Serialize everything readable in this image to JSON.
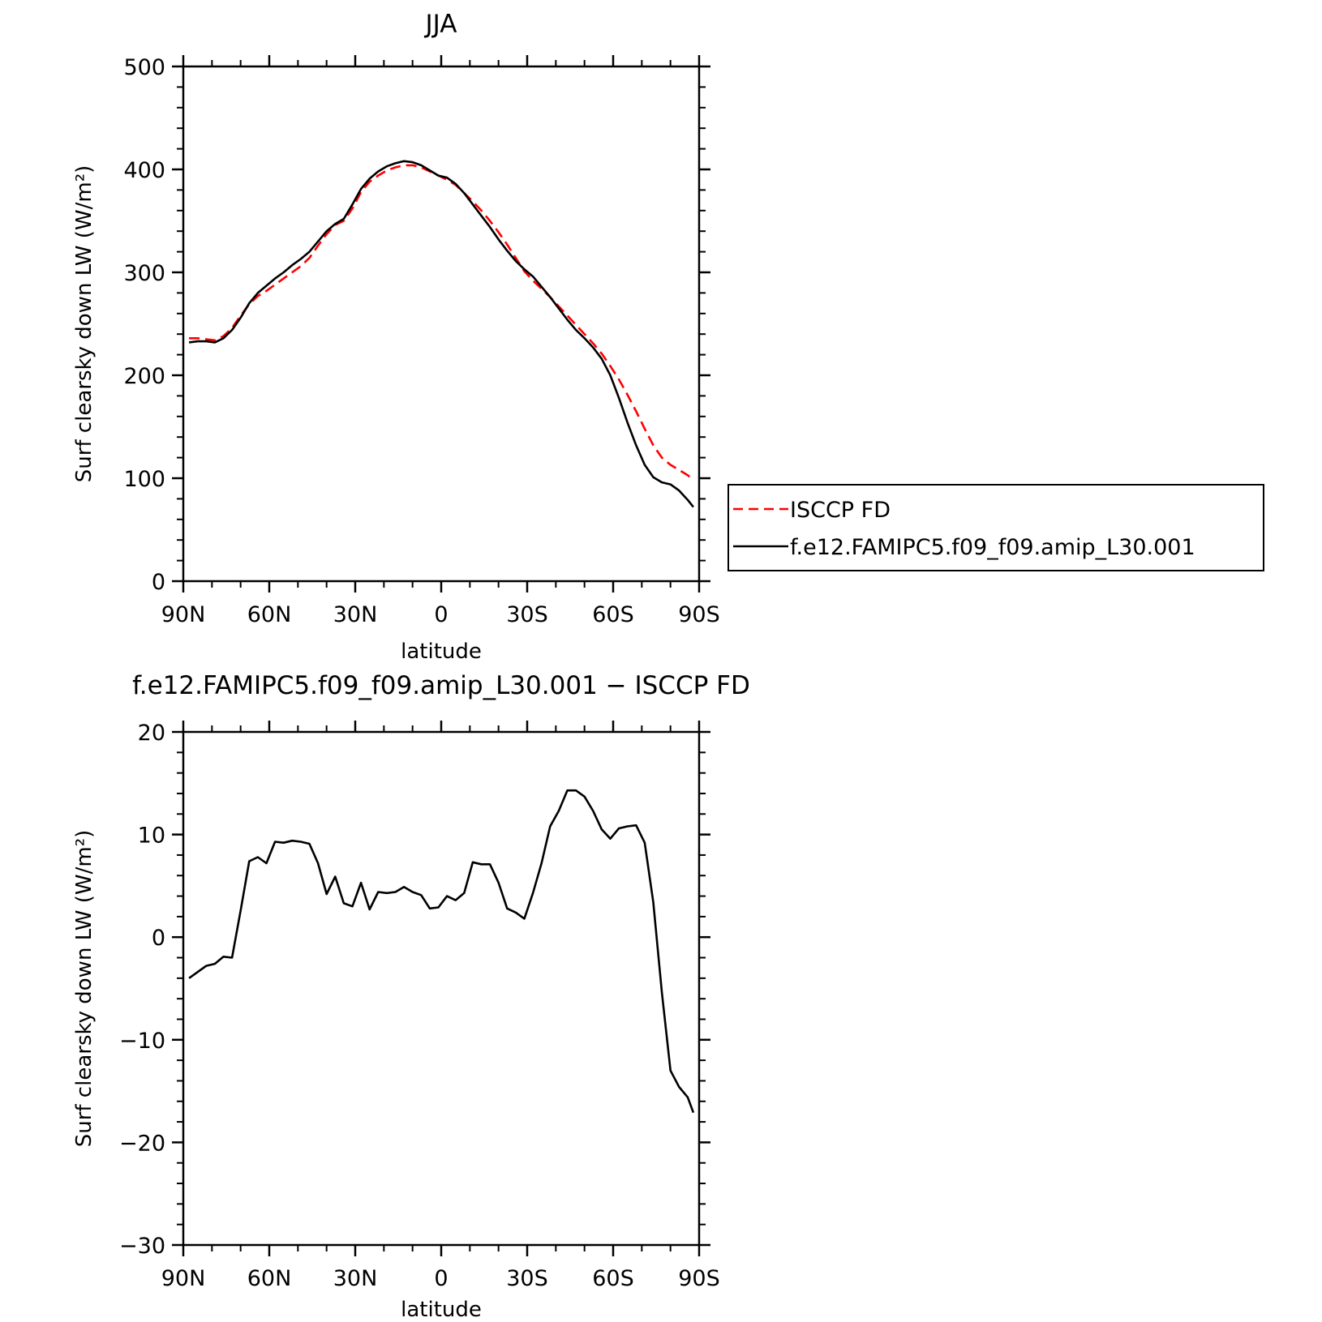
{
  "chart_data": [
    {
      "type": "line",
      "title": "JJA",
      "xlabel": "latitude",
      "ylabel": "Surf clearsky down LW (W/m²)",
      "xlim": [
        90,
        -90
      ],
      "ylim": [
        0,
        500
      ],
      "xticks": [
        90,
        60,
        30,
        0,
        -30,
        -60,
        -90
      ],
      "xtick_labels": [
        "90N",
        "60N",
        "30N",
        "0",
        "30S",
        "60S",
        "90S"
      ],
      "yticks": [
        0,
        100,
        200,
        300,
        400,
        500
      ],
      "ytick_labels": [
        "0",
        "100",
        "200",
        "300",
        "400",
        "500"
      ],
      "legend_position": "right",
      "series": [
        {
          "name": "ISCCP FD",
          "color": "#ff0000",
          "dash": true,
          "x": [
            88,
            85,
            82,
            79,
            76,
            73,
            70,
            67,
            64,
            61,
            58,
            55,
            52,
            49,
            46,
            43,
            40,
            37,
            34,
            31,
            28,
            25,
            22,
            19,
            16,
            13,
            10,
            7,
            4,
            1,
            -2,
            -5,
            -8,
            -11,
            -14,
            -17,
            -20,
            -23,
            -26,
            -29,
            -32,
            -35,
            -38,
            -41,
            -44,
            -47,
            -50,
            -53,
            -56,
            -59,
            -62,
            -65,
            -68,
            -71,
            -74,
            -77,
            -80,
            -83,
            -86,
            -88
          ],
          "y": [
            236,
            236,
            235,
            234,
            238,
            246,
            258,
            269,
            277,
            282,
            288,
            294,
            300,
            306,
            314,
            326,
            337,
            346,
            350,
            362,
            378,
            388,
            394,
            399,
            402,
            404,
            404,
            402,
            398,
            394,
            390,
            385,
            377,
            369,
            360,
            350,
            339,
            327,
            314,
            301,
            292,
            284,
            276,
            267,
            258,
            249,
            240,
            231,
            221,
            209,
            196,
            181,
            165,
            148,
            132,
            120,
            113,
            108,
            103,
            98
          ]
        },
        {
          "name": "f.e12.FAMIPC5.f09_f09.amip_L30.001",
          "color": "#000000",
          "dash": false,
          "x": [
            88,
            85,
            82,
            79,
            76,
            73,
            70,
            67,
            64,
            61,
            58,
            55,
            52,
            49,
            46,
            43,
            40,
            37,
            34,
            31,
            28,
            25,
            22,
            19,
            16,
            13,
            10,
            7,
            4,
            1,
            -2,
            -5,
            -8,
            -11,
            -14,
            -17,
            -20,
            -23,
            -26,
            -29,
            -32,
            -35,
            -38,
            -41,
            -44,
            -47,
            -50,
            -53,
            -56,
            -59,
            -62,
            -65,
            -68,
            -71,
            -74,
            -77,
            -80,
            -83,
            -86,
            -88
          ],
          "y": [
            232,
            233,
            233,
            232,
            236,
            244,
            256,
            270,
            280,
            287,
            294,
            300,
            307,
            313,
            320,
            330,
            340,
            347,
            352,
            366,
            381,
            391,
            398,
            403,
            406,
            408,
            407,
            404,
            399,
            394,
            392,
            386,
            377,
            366,
            355,
            344,
            332,
            321,
            311,
            303,
            296,
            286,
            276,
            265,
            254,
            244,
            236,
            227,
            216,
            200,
            178,
            154,
            132,
            113,
            101,
            96,
            94,
            88,
            79,
            72
          ]
        }
      ]
    },
    {
      "type": "line",
      "title": "f.e12.FAMIPC5.f09_f09.amip_L30.001 − ISCCP FD",
      "xlabel": "latitude",
      "ylabel": "Surf clearsky down LW (W/m²)",
      "xlim": [
        90,
        -90
      ],
      "ylim": [
        -30,
        20
      ],
      "xticks": [
        90,
        60,
        30,
        0,
        -30,
        -60,
        -90
      ],
      "xtick_labels": [
        "90N",
        "60N",
        "30N",
        "0",
        "30S",
        "60S",
        "90S"
      ],
      "yticks": [
        -30,
        -20,
        -10,
        0,
        10,
        20
      ],
      "ytick_labels": [
        "−30",
        "−20",
        "−10",
        "0",
        "10",
        "20"
      ],
      "series": [
        {
          "color": "#000000",
          "dash": false,
          "x": [
            88,
            85,
            82,
            79,
            76,
            73,
            70,
            67,
            64,
            61,
            58,
            55,
            52,
            49,
            46,
            43,
            40,
            37,
            34,
            31,
            28,
            25,
            22,
            19,
            16,
            13,
            10,
            7,
            4,
            1,
            -2,
            -5,
            -8,
            -11,
            -14,
            -17,
            -20,
            -23,
            -26,
            -29,
            -32,
            -35,
            -38,
            -41,
            -44,
            -47,
            -50,
            -53,
            -56,
            -59,
            -62,
            -65,
            -68,
            -71,
            -74,
            -77,
            -80,
            -83,
            -86,
            -88
          ],
          "y": [
            -4.0,
            -3.4,
            -2.8,
            -2.6,
            -1.9,
            -2.0,
            2.6,
            7.4,
            7.8,
            7.2,
            9.3,
            9.2,
            9.4,
            9.3,
            9.1,
            7.2,
            4.2,
            5.9,
            3.3,
            3.0,
            5.3,
            2.7,
            4.4,
            4.3,
            4.4,
            4.9,
            4.4,
            4.1,
            2.8,
            2.9,
            4.0,
            3.6,
            4.3,
            7.3,
            7.1,
            7.1,
            5.3,
            2.8,
            2.4,
            1.8,
            4.3,
            7.2,
            10.8,
            12.3,
            14.3,
            14.3,
            13.7,
            12.3,
            10.5,
            9.6,
            10.6,
            10.8,
            10.9,
            9.2,
            3.4,
            -5.4,
            -13.0,
            -14.6,
            -15.6,
            -17.1
          ]
        }
      ]
    }
  ]
}
